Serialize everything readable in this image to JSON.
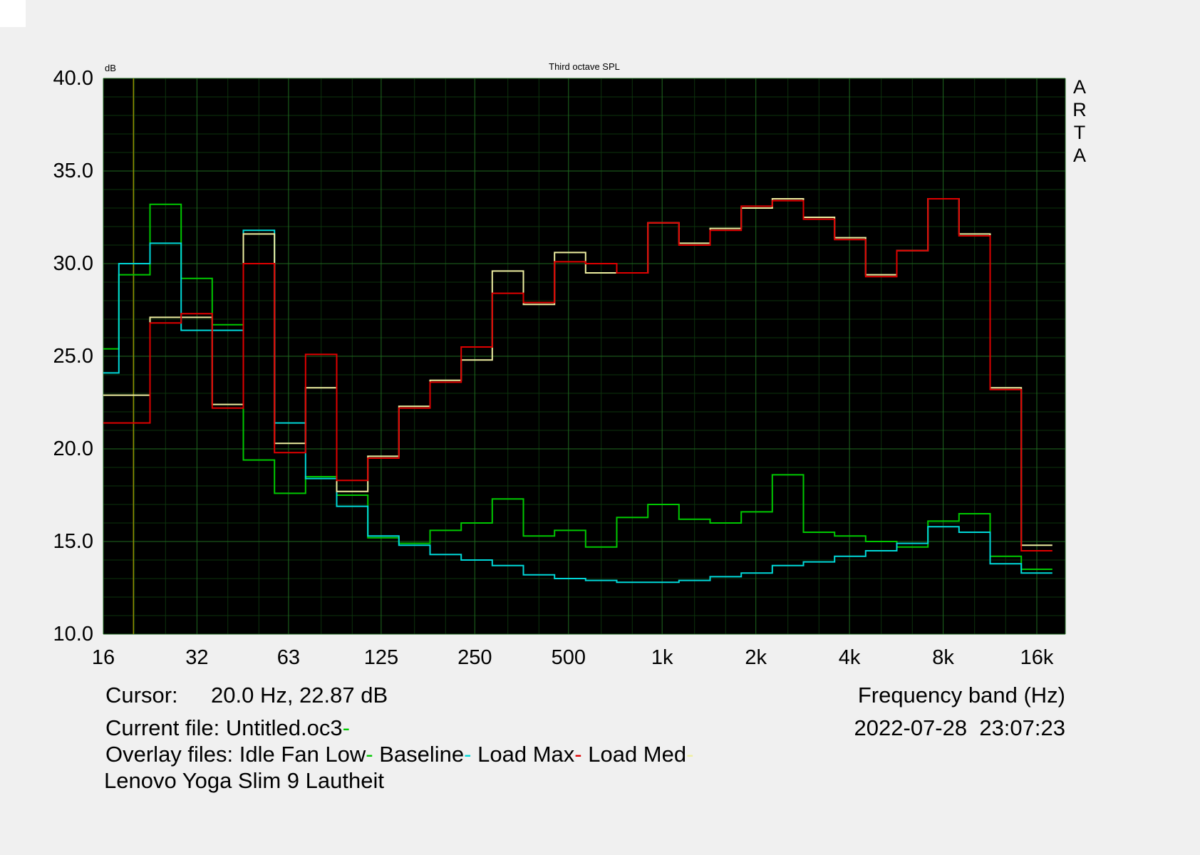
{
  "app": {
    "letters": [
      "A",
      "R",
      "T",
      "A"
    ]
  },
  "plot": {
    "title": "Third octave SPL",
    "y_unit": "dB",
    "bg": "#000000",
    "grid_minor": "#0d330d",
    "grid_major": "#1f6a1f",
    "cursor_line_color": "#909000"
  },
  "axes": {
    "y_ticks": [
      "40.0",
      "35.0",
      "30.0",
      "25.0",
      "20.0",
      "15.0",
      "10.0"
    ],
    "y_values": [
      40,
      35,
      30,
      25,
      20,
      15,
      10
    ],
    "x_ticks": [
      "16",
      "32",
      "63",
      "125",
      "250",
      "500",
      "1k",
      "2k",
      "4k",
      "8k",
      "16k"
    ],
    "x_values": [
      16,
      32,
      63,
      125,
      250,
      500,
      1000,
      2000,
      4000,
      8000,
      16000
    ],
    "x_label": "Frequency band (Hz)"
  },
  "chart_data": {
    "type": "line",
    "style": "third-octave-step-spectrum",
    "title": "Third octave SPL",
    "xlabel": "Frequency band (Hz)",
    "ylabel": "dB",
    "ylim": [
      10,
      40
    ],
    "x_scale": "log",
    "grid": true,
    "cursor": {
      "freq_hz": 20.0,
      "value_db": 22.87
    },
    "bands_hz": [
      16,
      20,
      25,
      31.5,
      40,
      50,
      63,
      80,
      100,
      125,
      160,
      200,
      250,
      315,
      400,
      500,
      630,
      800,
      1000,
      1250,
      1600,
      2000,
      2500,
      3150,
      4000,
      5000,
      6300,
      8000,
      10000,
      12500,
      16000
    ],
    "series": [
      {
        "name": "Idle Fan Low",
        "color": "#00c800",
        "values": [
          25.4,
          29.4,
          33.2,
          29.2,
          26.7,
          19.4,
          17.6,
          18.5,
          17.5,
          15.2,
          14.9,
          15.6,
          16.0,
          17.3,
          15.3,
          15.6,
          14.7,
          16.3,
          17.0,
          16.2,
          16.0,
          16.6,
          18.6,
          15.5,
          15.3,
          15.0,
          14.7,
          16.1,
          16.5,
          14.2,
          13.5
        ]
      },
      {
        "name": "Baseline",
        "color": "#00d8d8",
        "values": [
          24.1,
          30.0,
          31.1,
          26.4,
          26.4,
          31.8,
          21.4,
          18.4,
          16.9,
          15.3,
          14.8,
          14.3,
          14.0,
          13.7,
          13.2,
          13.0,
          12.9,
          12.8,
          12.8,
          12.9,
          13.1,
          13.3,
          13.7,
          13.9,
          14.2,
          14.5,
          14.9,
          15.8,
          15.5,
          13.8,
          13.3
        ]
      },
      {
        "name": "Load Med",
        "color": "#eeeea0",
        "values": [
          22.9,
          22.9,
          27.1,
          27.1,
          22.4,
          31.6,
          20.3,
          23.3,
          17.7,
          19.6,
          22.3,
          23.7,
          24.8,
          29.6,
          27.8,
          30.6,
          29.5,
          29.5,
          32.2,
          31.1,
          31.9,
          33.0,
          33.5,
          32.5,
          31.4,
          29.4,
          30.7,
          33.5,
          31.6,
          23.3,
          14.8
        ]
      },
      {
        "name": "Load Max",
        "color": "#e00000",
        "values": [
          21.4,
          21.4,
          26.8,
          27.3,
          22.2,
          30.0,
          19.8,
          25.1,
          18.3,
          19.5,
          22.2,
          23.6,
          25.5,
          28.4,
          27.9,
          30.1,
          30.0,
          29.5,
          32.2,
          31.0,
          31.8,
          33.1,
          33.4,
          32.4,
          31.3,
          29.3,
          30.7,
          33.5,
          31.5,
          23.2,
          14.5
        ]
      }
    ]
  },
  "status": {
    "cursor_label": "Cursor:",
    "cursor_value": "20.0 Hz, 22.87 dB",
    "current_file_label": "Current file:",
    "current_file_name": "Untitled.oc3",
    "current_file_dash": "-",
    "current_file_color": "#00c800",
    "overlay_label": "Overlay files:",
    "overlay_dash": "-",
    "overlays": [
      {
        "name": "Idle Fan Low",
        "color": "#00c800"
      },
      {
        "name": "Baseline",
        "color": "#00d8d8"
      },
      {
        "name": "Load Max",
        "color": "#e00000"
      },
      {
        "name": "Load Med",
        "color": "#eeeea0"
      }
    ],
    "datetime": "2022-07-28  23:07:23",
    "device_note": "Lenovo Yoga Slim 9 Lautheit"
  }
}
